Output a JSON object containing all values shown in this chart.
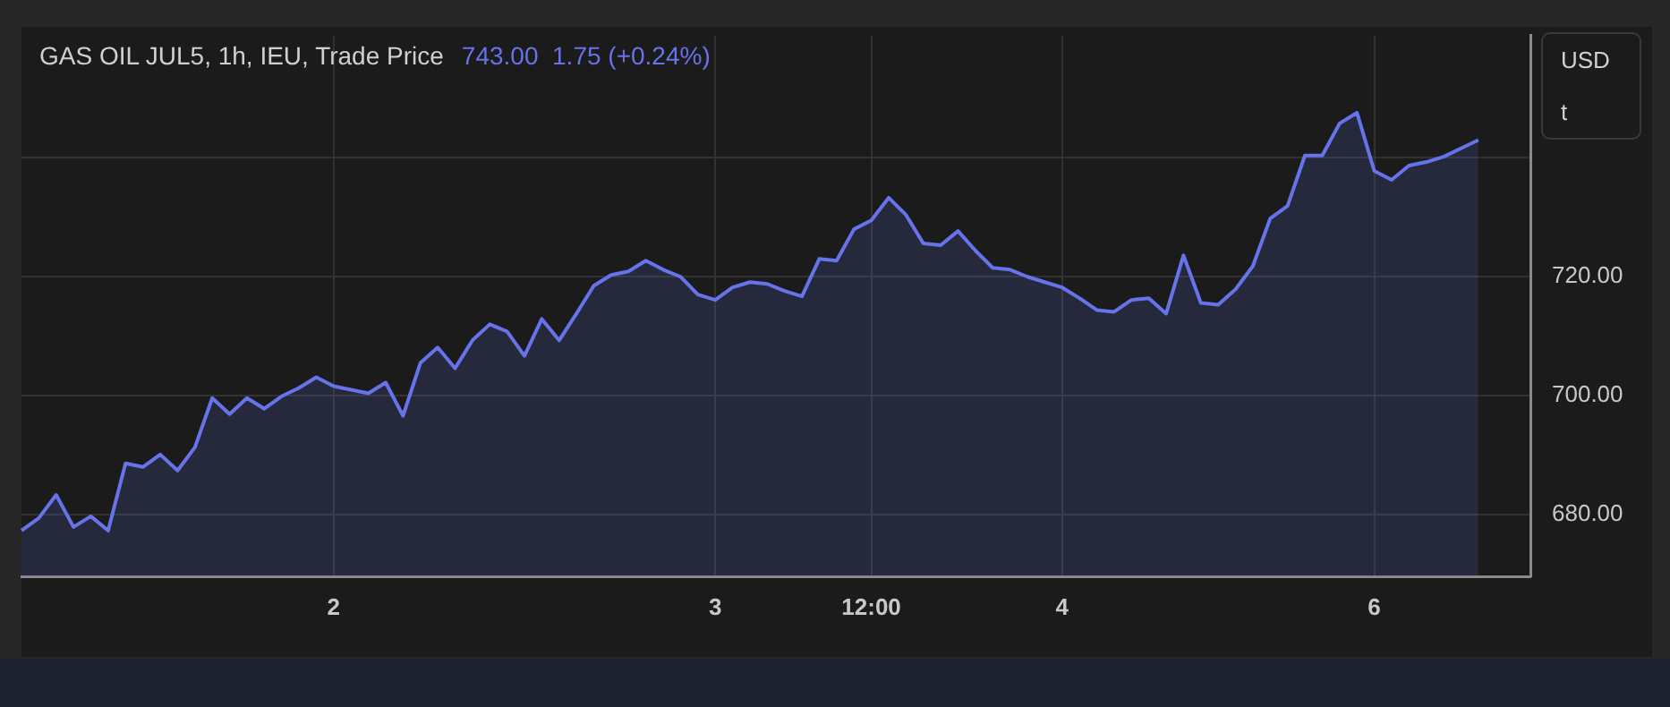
{
  "chart_data": {
    "type": "area",
    "title": "GAS OIL JUL5, 1h, IEU, Trade Price",
    "subtitle": "743.00  1.75 (+0.24%)",
    "annotations": [
      "USD",
      "t"
    ],
    "categories": [
      null,
      null,
      null,
      null,
      null,
      null,
      null,
      null,
      null,
      null,
      null,
      null,
      null,
      null,
      null,
      null,
      null,
      null,
      "2",
      null,
      null,
      null,
      null,
      null,
      null,
      null,
      null,
      null,
      null,
      null,
      null,
      null,
      null,
      null,
      null,
      null,
      null,
      null,
      null,
      null,
      "3",
      null,
      null,
      null,
      null,
      null,
      null,
      null,
      null,
      "12:00",
      null,
      null,
      null,
      null,
      null,
      null,
      null,
      null,
      null,
      null,
      "4",
      null,
      null,
      null,
      null,
      null,
      null,
      null,
      null,
      null,
      null,
      null,
      null,
      null,
      null,
      null,
      null,
      null,
      "6",
      null,
      null,
      null,
      null,
      null,
      null,
      null,
      null,
      null
    ],
    "series": [
      {
        "color": "#6673ea",
        "values": [
          677.3,
          679.4,
          683.3,
          677.9,
          679.7,
          677.3,
          688.6,
          688.0,
          690.1,
          687.4,
          691.3,
          699.6,
          696.9,
          699.6,
          697.8,
          699.9,
          701.3,
          703.1,
          701.6,
          701.0,
          700.4,
          702.2,
          696.6,
          705.5,
          708.1,
          704.6,
          709.3,
          712.0,
          710.8,
          706.7,
          712.9,
          709.3,
          713.8,
          718.5,
          720.3,
          720.9,
          722.7,
          721.2,
          720.0,
          717.0,
          716.1,
          718.2,
          719.1,
          718.8,
          717.6,
          716.7,
          723.0,
          722.7,
          728.0,
          729.5,
          733.3,
          730.4,
          725.6,
          725.3,
          727.7,
          724.4,
          721.5,
          721.2,
          720.0,
          719.1,
          718.2,
          716.4,
          714.4,
          714.1,
          716.1,
          716.4,
          713.8,
          723.6,
          715.6,
          715.3,
          717.9,
          721.8,
          729.8,
          731.9,
          740.4,
          740.4,
          745.8,
          747.6,
          737.8,
          736.3,
          738.7,
          739.3,
          740.2,
          741.6,
          743.0,
          null,
          null,
          null
        ]
      }
    ],
    "ylim": [
      669.6,
      760.6
    ],
    "yticks": [
      {
        "value": 680,
        "label": "680.00"
      },
      {
        "value": 700,
        "label": "700.00"
      },
      {
        "value": 720,
        "label": "720.00"
      },
      {
        "value": 740,
        "label": null
      }
    ],
    "grid": true
  }
}
